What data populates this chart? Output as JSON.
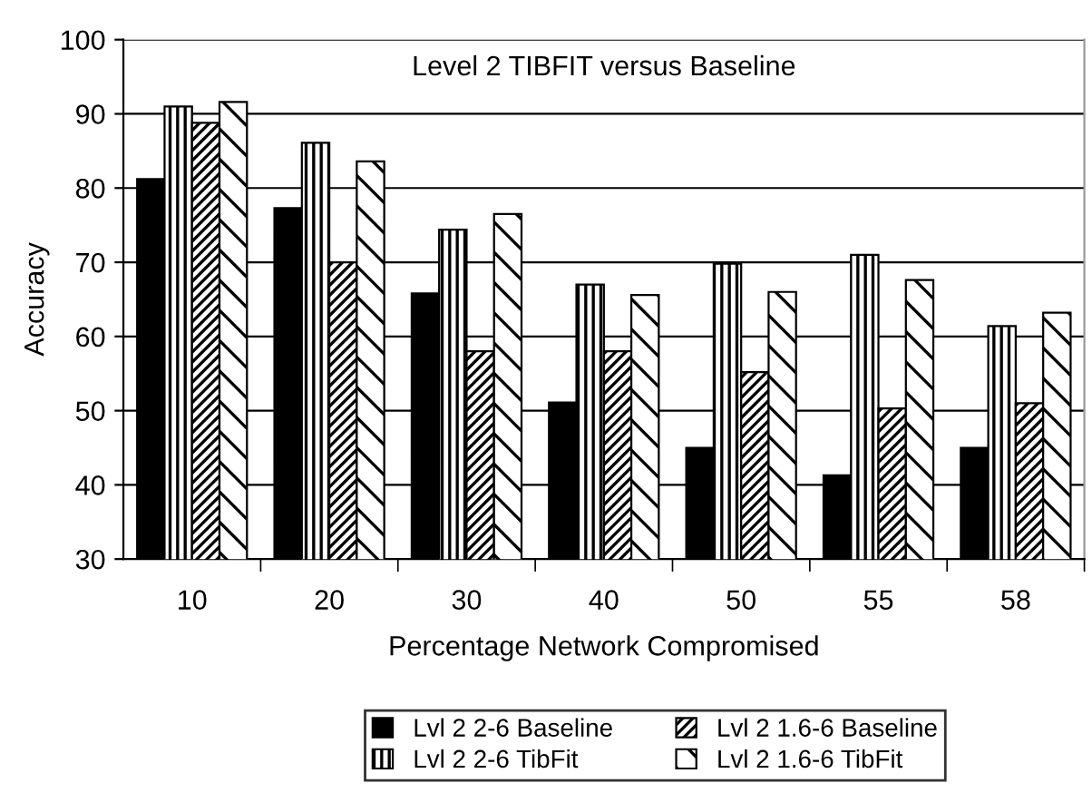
{
  "chart_data": {
    "type": "bar",
    "title": "Level 2 TIBFIT versus Baseline",
    "xlabel": "Percentage Network Compromised",
    "ylabel": "Accuracy",
    "categories": [
      "10",
      "20",
      "30",
      "40",
      "50",
      "55",
      "58"
    ],
    "series": [
      {
        "name": "Lvl 2 2-6 Baseline",
        "color": "#000000",
        "values": [
          81.2,
          77.3,
          65.8,
          51.1,
          45,
          41.3,
          45
        ]
      },
      {
        "name": "Lvl 2 2-6 TibFit",
        "color": "#000000",
        "values": [
          91,
          86.1,
          74.4,
          67,
          69.8,
          71,
          61.4
        ]
      },
      {
        "name": "Lvl 2 1.6-6 Baseline",
        "color": "#000000",
        "values": [
          88.8,
          70,
          58,
          58,
          55.2,
          50.3,
          51
        ]
      },
      {
        "name": "Lvl 2 1.6-6 TibFit",
        "color": "#000000",
        "values": [
          91.6,
          83.6,
          76.5,
          65.6,
          66,
          67.6,
          63.2
        ]
      }
    ],
    "ylim": [
      30,
      100
    ],
    "yticks": [
      30,
      40,
      50,
      60,
      70,
      80,
      90,
      100
    ],
    "grid": "y",
    "legend": "bottom"
  }
}
